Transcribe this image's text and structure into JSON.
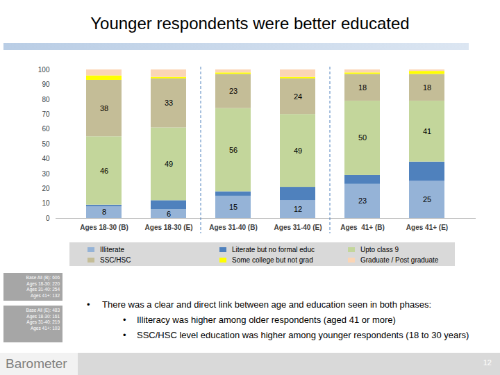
{
  "chart_data": {
    "type": "bar",
    "stacked": true,
    "title": "Younger respondents were better educated",
    "categories": [
      "Ages 18-30 (B)",
      "Ages 18-30 (E)",
      "Ages 31-40 (B)",
      "Ages 31-40 (E)",
      "Ages  41+ (B)",
      "Ages 41+ (E)"
    ],
    "series": [
      {
        "name": "Illiterate",
        "color": "#95b3d7",
        "values": [
          8,
          6,
          15,
          12,
          23,
          25
        ],
        "data_labels": true
      },
      {
        "name": "Literate but no formal educ",
        "color": "#4f81bd",
        "values": [
          1,
          6,
          3,
          9,
          6,
          13
        ]
      },
      {
        "name": "Upto class 9",
        "color": "#c3d69b",
        "values": [
          46,
          49,
          56,
          49,
          50,
          41
        ],
        "data_labels": true
      },
      {
        "name": "SSC/HSC",
        "color": "#c4bd97",
        "values": [
          38,
          33,
          23,
          24,
          18,
          18
        ],
        "data_labels": true
      },
      {
        "name": "Some college but not grad",
        "color": "#ffff00",
        "values": [
          3,
          1,
          1,
          1,
          1,
          2
        ]
      },
      {
        "name": "Graduate / Post graduate",
        "color": "#fbd5b5",
        "values": [
          4,
          5,
          2,
          5,
          2,
          1
        ]
      }
    ],
    "ylim": [
      0,
      100
    ],
    "yticks": [
      0,
      10,
      20,
      30,
      40,
      50,
      60,
      70,
      80,
      90,
      100
    ],
    "grid": false,
    "legend": "bottom"
  },
  "base_notes": [
    [
      "Base All (B): 606",
      "Ages 18-30: 220",
      "Ages 31-40: 254",
      "Ages 41+: 132"
    ],
    [
      "Base All (E): 483",
      "Ages 18-30: 161",
      "Ages 31-40: 219",
      "Ages 41+: 103"
    ]
  ],
  "bullets": {
    "text": "There was a clear and direct link between age and education seen in both phases:",
    "sub": [
      "Illiteracy was higher among older respondents (aged 41 or more)",
      "SSC/HSC level education was higher among younger respondents (18 to 30 years)"
    ]
  },
  "footer": {
    "logo": "Barometer",
    "page": "12"
  }
}
